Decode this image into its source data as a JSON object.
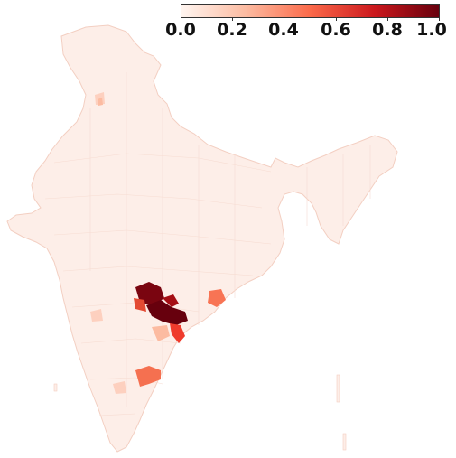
{
  "colorbar": {
    "ticks": [
      "0.0",
      "0.2",
      "0.4",
      "0.6",
      "0.8",
      "1.0"
    ],
    "min": 0.0,
    "max": 1.0,
    "colors": [
      "#fff5f0",
      "#fcbba1",
      "#fb6a4a",
      "#cb181d",
      "#67000d"
    ]
  },
  "map": {
    "base_color": "#fdeee8",
    "border_color": "#f3cfc2",
    "highlighted_districts": [
      {
        "value": 1.0,
        "color": "#67000d"
      },
      {
        "value": 0.95,
        "color": "#7a0510"
      },
      {
        "value": 0.85,
        "color": "#a50f15"
      },
      {
        "value": 0.55,
        "color": "#e34a33"
      },
      {
        "value": 0.6,
        "color": "#ef3b2c"
      },
      {
        "value": 0.45,
        "color": "#f87454"
      },
      {
        "value": 0.5,
        "color": "#f57050"
      },
      {
        "value": 0.2,
        "color": "#fcbba1"
      },
      {
        "value": 0.15,
        "color": "#fdd0bf"
      }
    ]
  }
}
